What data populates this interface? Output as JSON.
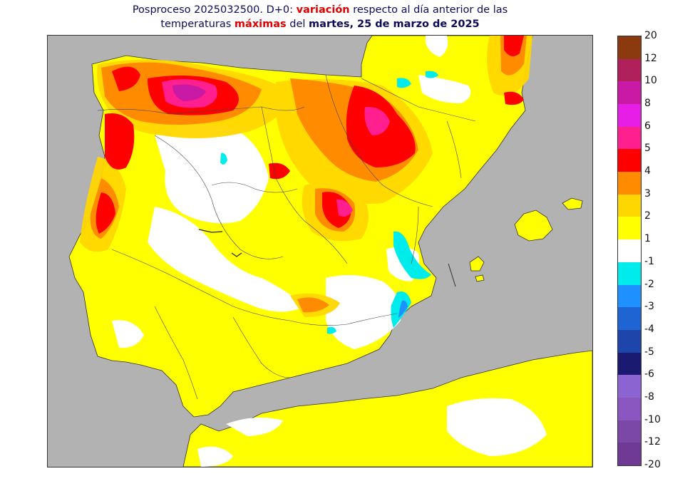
{
  "title": {
    "line1_a": "Posproceso 2025032500. D+0: ",
    "line1_b": "variación",
    "line1_c": " respecto al día anterior de las",
    "line2_a": "temperaturas ",
    "line2_b": "máximas",
    "line2_c": " del ",
    "line2_d": "martes, 25 de marzo de 2025"
  },
  "legend": {
    "labels": [
      "20",
      "12",
      "10",
      "8",
      "6",
      "5",
      "4",
      "3",
      "2",
      "1",
      "-1",
      "-2",
      "-3",
      "-4",
      "-5",
      "-6",
      "-8",
      "-10",
      "-12",
      "-20"
    ],
    "colors": [
      "#8b3a10",
      "#b0205a",
      "#c81aa4",
      "#e61ee6",
      "#ff1f8e",
      "#ff0000",
      "#ff8c00",
      "#ffd700",
      "#ffff00",
      "#ffffff",
      "#00ebeb",
      "#1e90ff",
      "#1e64d2",
      "#1e46aa",
      "#1a1a70",
      "#8c64d2",
      "#8a56c0",
      "#7c48a8",
      "#6e3a96"
    ]
  },
  "colors": {
    "sea": "#b2b2b2",
    "land_base": "#ffff00",
    "red": "#ff0000",
    "orange": "#ff8c00",
    "gold": "#ffd700",
    "white": "#ffffff",
    "magenta": "#ff1f8e",
    "pink": "#c81aa4",
    "cyan": "#00ebeb",
    "blue": "#1e90ff"
  }
}
